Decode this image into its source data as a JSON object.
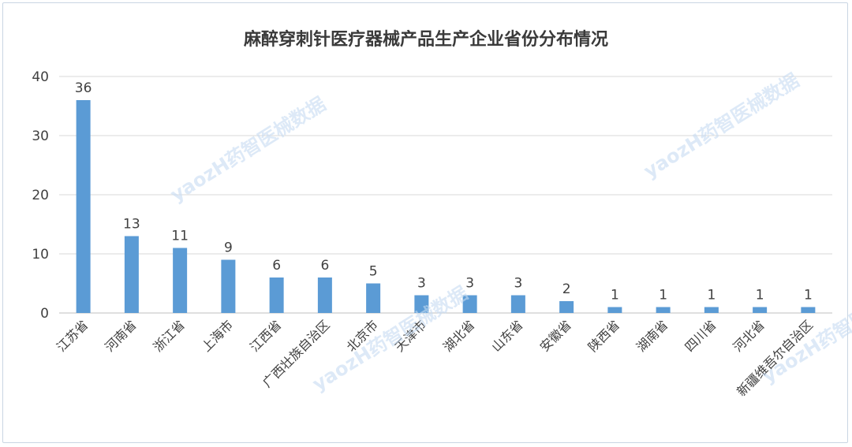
{
  "chart_data": {
    "type": "bar",
    "title": "麻醉穿刺针医疗器械产品生产企业省份分布情况",
    "categories": [
      "江苏省",
      "河南省",
      "浙江省",
      "上海市",
      "江西省",
      "广西壮族自治区",
      "北京市",
      "天津市",
      "湖北省",
      "山东省",
      "安徽省",
      "陕西省",
      "湖南省",
      "四川省",
      "河北省",
      "新疆维吾尔自治区"
    ],
    "values": [
      36,
      13,
      11,
      9,
      6,
      6,
      5,
      3,
      3,
      3,
      2,
      1,
      1,
      1,
      1,
      1
    ],
    "ylim": [
      0,
      40
    ],
    "yticks": [
      0,
      10,
      20,
      30,
      40
    ],
    "grid": true,
    "bar_color": "#5b9bd5",
    "xlabel": "",
    "ylabel": ""
  },
  "watermark": {
    "text": "yaozH药智医械数据"
  }
}
